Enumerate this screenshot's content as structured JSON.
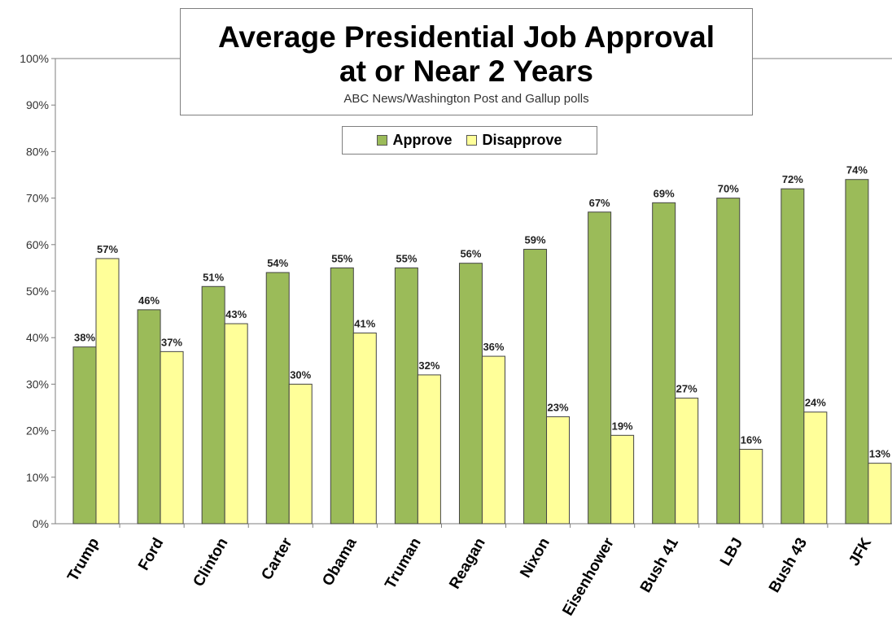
{
  "chart_data": {
    "type": "bar",
    "title": "Average Presidential Job Approval",
    "title_line2": "at or Near 2 Years",
    "subtitle": "ABC News/Washington  Post and Gallup  polls",
    "xlabel": "",
    "ylabel": "",
    "ylim": [
      0,
      100
    ],
    "yticks": [
      "0%",
      "10%",
      "20%",
      "30%",
      "40%",
      "50%",
      "60%",
      "70%",
      "80%",
      "90%",
      "100%"
    ],
    "grid": false,
    "legend_position": "top-center",
    "categories": [
      "Trump",
      "Ford",
      "Clinton",
      "Carter",
      "Obama",
      "Truman",
      "Reagan",
      "Nixon",
      "Eisenhower",
      "Bush 41",
      "LBJ",
      "Bush 43",
      "JFK"
    ],
    "series": [
      {
        "name": "Approve",
        "color": "#9bbb59",
        "values": [
          38,
          46,
          51,
          54,
          55,
          55,
          56,
          59,
          67,
          69,
          70,
          72,
          74
        ],
        "labels": [
          "38%",
          "46%",
          "51%",
          "54%",
          "55%",
          "55%",
          "56%",
          "59%",
          "67%",
          "69%",
          "70%",
          "72%",
          "74%"
        ]
      },
      {
        "name": "Disapprove",
        "color": "#ffff99",
        "values": [
          57,
          37,
          43,
          30,
          41,
          32,
          36,
          23,
          19,
          27,
          16,
          24,
          13
        ],
        "labels": [
          "57%",
          "37%",
          "43%",
          "30%",
          "41%",
          "32%",
          "36%",
          "23%",
          "19%",
          "27%",
          "16%",
          "24%",
          "13%"
        ]
      }
    ]
  }
}
